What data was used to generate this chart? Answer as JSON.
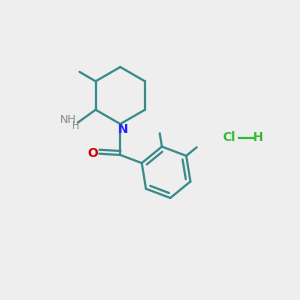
{
  "background_color": "#eeeeee",
  "bond_color": "#3a8a8a",
  "bond_lw": 1.6,
  "N_color": "#2222ff",
  "O_color": "#cc0000",
  "NH2_color": "#888888",
  "HCl_color": "#33bb33",
  "figsize": [
    3.0,
    3.0
  ],
  "dpi": 100,
  "xlim": [
    -1,
    11
  ],
  "ylim": [
    -1,
    11
  ]
}
